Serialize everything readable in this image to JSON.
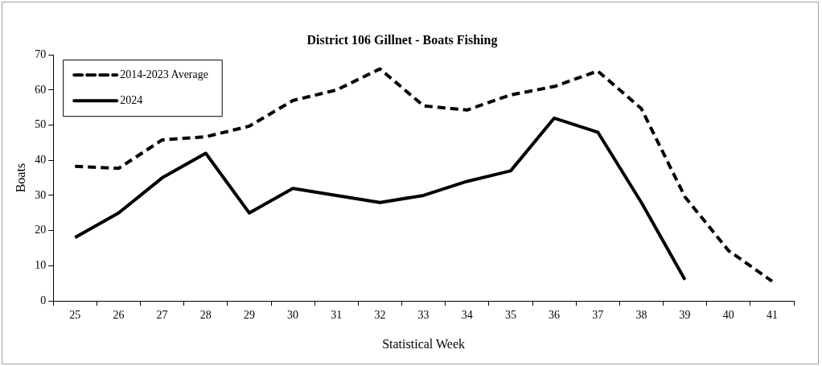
{
  "chart_data": {
    "type": "line",
    "title": "District 106 Gillnet - Boats Fishing",
    "xlabel": "Statistical Week",
    "ylabel": "Boats",
    "categories": [
      "25",
      "26",
      "27",
      "28",
      "29",
      "30",
      "31",
      "32",
      "33",
      "34",
      "35",
      "36",
      "37",
      "38",
      "39",
      "40",
      "41"
    ],
    "series": [
      {
        "name": "2014-2023 Average",
        "color": "#000000",
        "line_style": "dashed",
        "values": [
          38.3,
          37.7,
          45.8,
          46.7,
          49.7,
          57,
          60,
          66,
          55.5,
          54.3,
          58.6,
          61,
          65.4,
          54.7,
          29.6,
          14.3,
          5.6
        ]
      },
      {
        "name": "2024",
        "color": "#000000",
        "line_style": "solid",
        "values": [
          18,
          25,
          35,
          42,
          25,
          32,
          30,
          28,
          30,
          34,
          37,
          52,
          48,
          28,
          6,
          null,
          null
        ]
      }
    ],
    "ylim": [
      0,
      70
    ],
    "yticks": [
      0,
      10,
      20,
      30,
      40,
      50,
      60,
      70
    ],
    "grid": false,
    "legend": "top left",
    "marker": "none"
  }
}
